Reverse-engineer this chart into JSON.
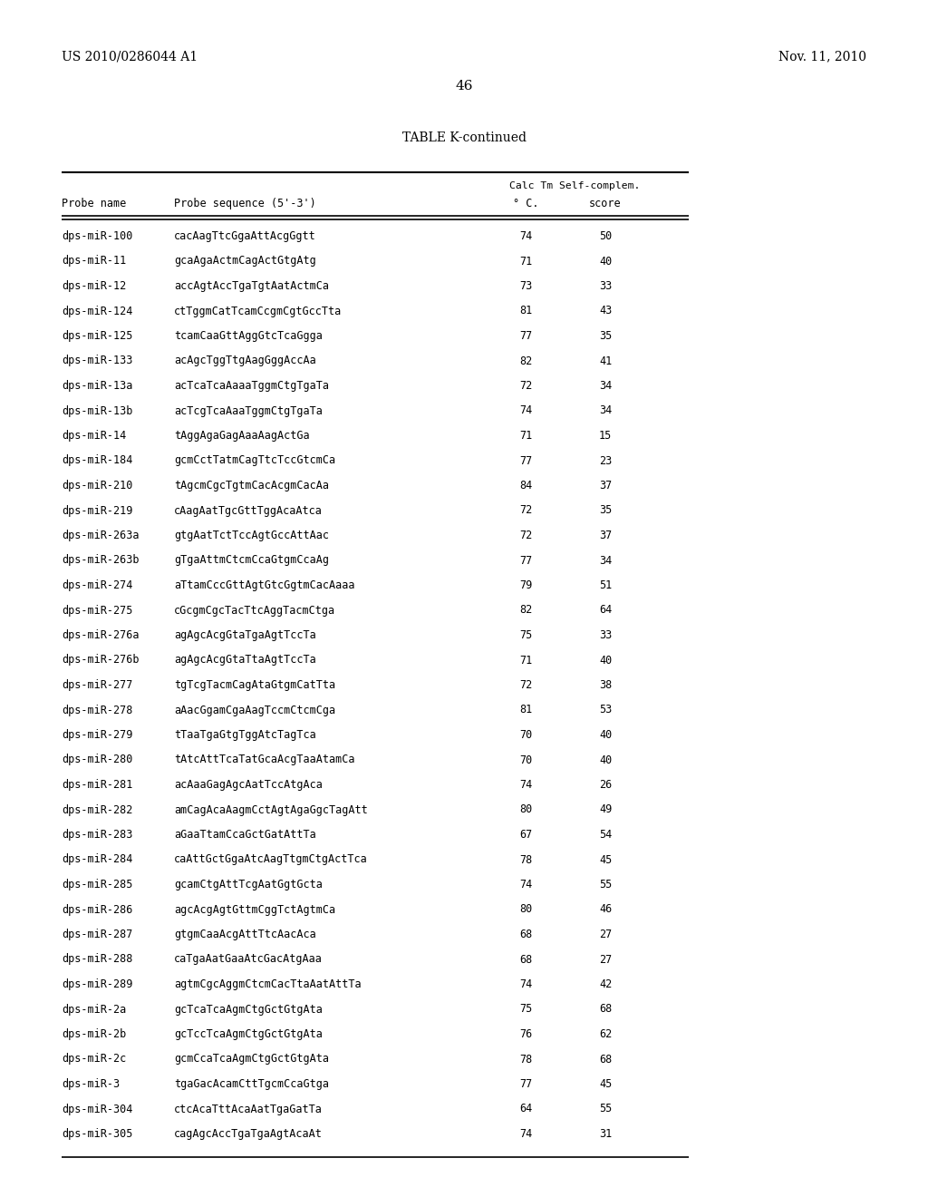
{
  "page_number": "46",
  "patent_number": "US 2010/0286044 A1",
  "patent_date": "Nov. 11, 2010",
  "table_title": "TABLE K-continued",
  "col_header_top": "Calc Tm Self-complem.",
  "col_header_probe": "Probe name",
  "col_header_seq": "Probe sequence (5’-3’)",
  "col_header_tm": "° C.",
  "col_header_score": "score",
  "rows": [
    [
      "dps-miR-100",
      "cacAagTtcGgaAttAcgGgtt",
      "74",
      "50"
    ],
    [
      "dps-miR-11",
      "gcaAgaActmCagActGtgAtg",
      "71",
      "40"
    ],
    [
      "dps-miR-12",
      "accAgtAccTgaTgtAatActmCa",
      "73",
      "33"
    ],
    [
      "dps-miR-124",
      "ctTggmCatTcamCcgmCgtGccTta",
      "81",
      "43"
    ],
    [
      "dps-miR-125",
      "tcamCaaGttAggGtcTcaGgga",
      "77",
      "35"
    ],
    [
      "dps-miR-133",
      "acAgcTggTtgAagGggAccAa",
      "82",
      "41"
    ],
    [
      "dps-miR-13a",
      "acTcaTcaAaaaTggmCtgTgaTa",
      "72",
      "34"
    ],
    [
      "dps-miR-13b",
      "acTcgTcaAaaTggmCtgTgaTa",
      "74",
      "34"
    ],
    [
      "dps-miR-14",
      "tAggAgaGagAaaAagActGa",
      "71",
      "15"
    ],
    [
      "dps-miR-184",
      "gcmCctTatmCagTtcTccGtcmCa",
      "77",
      "23"
    ],
    [
      "dps-miR-210",
      "tAgcmCgcTgtmCacAcgmCacAa",
      "84",
      "37"
    ],
    [
      "dps-miR-219",
      "cAagAatTgcGttTggAcaAtca",
      "72",
      "35"
    ],
    [
      "dps-miR-263a",
      "gtgAatTctTccAgtGccAttAac",
      "72",
      "37"
    ],
    [
      "dps-miR-263b",
      "gTgaAttmCtcmCcaGtgmCcaAg",
      "77",
      "34"
    ],
    [
      "dps-miR-274",
      "aTtamCccGttAgtGtcGgtmCacAaaa",
      "79",
      "51"
    ],
    [
      "dps-miR-275",
      "cGcgmCgcTacTtcAggTacmCtga",
      "82",
      "64"
    ],
    [
      "dps-miR-276a",
      "agAgcAcgGtaTgaAgtTccTa",
      "75",
      "33"
    ],
    [
      "dps-miR-276b",
      "agAgcAcgGtaTtaAgtTccTa",
      "71",
      "40"
    ],
    [
      "dps-miR-277",
      "tgTcgTacmCagAtaGtgmCatTta",
      "72",
      "38"
    ],
    [
      "dps-miR-278",
      "aAacGgamCgaAagTccmCtcmCga",
      "81",
      "53"
    ],
    [
      "dps-miR-279",
      "tTaaTgaGtgTggAtcTagTca",
      "70",
      "40"
    ],
    [
      "dps-miR-280",
      "tAtcAttTcaTatGcaAcgTaaAtamCa",
      "70",
      "40"
    ],
    [
      "dps-miR-281",
      "acAaaGagAgcAatTccAtgAca",
      "74",
      "26"
    ],
    [
      "dps-miR-282",
      "amCagAcaAagmCctAgtAgaGgcTagAtt",
      "80",
      "49"
    ],
    [
      "dps-miR-283",
      "aGaaTtamCcaGctGatAttTa",
      "67",
      "54"
    ],
    [
      "dps-miR-284",
      "caAttGctGgaAtcAagTtgmCtgActTca",
      "78",
      "45"
    ],
    [
      "dps-miR-285",
      "gcamCtgAttTcgAatGgtGcta",
      "74",
      "55"
    ],
    [
      "dps-miR-286",
      "agcAcgAgtGttmCggTctAgtmCa",
      "80",
      "46"
    ],
    [
      "dps-miR-287",
      "gtgmCaaAcgAttTtcAacAca",
      "68",
      "27"
    ],
    [
      "dps-miR-288",
      "caTgaAatGaaAtcGacAtgAaa",
      "68",
      "27"
    ],
    [
      "dps-miR-289",
      "agtmCgcAggmCtcmCacTtaAatAttTa",
      "74",
      "42"
    ],
    [
      "dps-miR-2a",
      "gcTcaTcaAgmCtgGctGtgAta",
      "75",
      "68"
    ],
    [
      "dps-miR-2b",
      "gcTccTcaAgmCtgGctGtgAta",
      "76",
      "62"
    ],
    [
      "dps-miR-2c",
      "gcmCcaTcaAgmCtgGctGtgAta",
      "78",
      "68"
    ],
    [
      "dps-miR-3",
      "tgaGacAcamCttTgcmCcaGtga",
      "77",
      "45"
    ],
    [
      "dps-miR-304",
      "ctcAcaTttAcaAatTgaGatTa",
      "64",
      "55"
    ],
    [
      "dps-miR-305",
      "cagAgcAccTgaTgaAgtAcaAt",
      "74",
      "31"
    ]
  ],
  "bg_color": "#ffffff",
  "text_color": "#000000"
}
